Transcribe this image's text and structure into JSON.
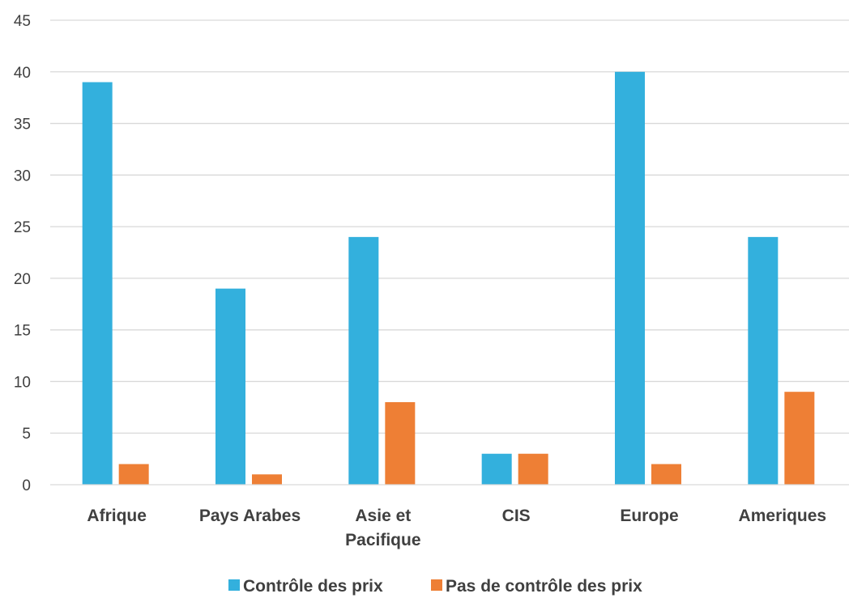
{
  "chart_data": {
    "type": "bar",
    "categories": [
      [
        "Afrique"
      ],
      [
        "Pays Arabes"
      ],
      [
        "Asie et",
        "Pacifique"
      ],
      [
        "CIS"
      ],
      [
        "Europe"
      ],
      [
        "Ameriques"
      ]
    ],
    "series": [
      {
        "name": "Contrôle des prix",
        "color": "#33b0dd",
        "values": [
          39,
          19,
          24,
          3,
          40,
          24
        ]
      },
      {
        "name": "Pas de contrôle des prix",
        "color": "#ee7f35",
        "values": [
          2,
          1,
          8,
          3,
          2,
          9
        ]
      }
    ],
    "title": "",
    "xlabel": "",
    "ylabel": "",
    "ylim": [
      0,
      45
    ],
    "yticks": [
      0,
      5,
      10,
      15,
      20,
      25,
      30,
      35,
      40,
      45
    ],
    "grid": true,
    "legend": "bottom"
  }
}
